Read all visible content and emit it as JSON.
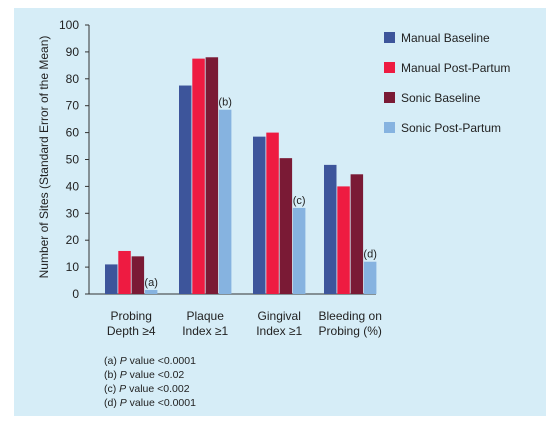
{
  "chart_data": {
    "type": "bar",
    "ylabel": "Number of Sites (Standard Error of the Mean)",
    "xlabel": "",
    "ylim": [
      0,
      100
    ],
    "yticks": [
      0,
      10,
      20,
      30,
      40,
      50,
      60,
      70,
      80,
      90,
      100
    ],
    "categories": [
      [
        "Probing",
        "Depth ≥4"
      ],
      [
        "Plaque",
        "Index ≥1"
      ],
      [
        "Gingival",
        "Index ≥1"
      ],
      [
        "Bleeding on",
        "Probing (%)"
      ]
    ],
    "series": [
      {
        "name": "Manual Baseline",
        "color": "#3d559b",
        "values": [
          11,
          77.5,
          58.5,
          48
        ]
      },
      {
        "name": "Manual Post-Partum",
        "color": "#ee1b41",
        "values": [
          16,
          87.5,
          60,
          40
        ]
      },
      {
        "name": "Sonic Baseline",
        "color": "#7a1a35",
        "values": [
          14,
          88,
          50.5,
          44.5
        ]
      },
      {
        "name": "Sonic Post-Partum",
        "color": "#86b3e0",
        "values": [
          1.5,
          68.5,
          32,
          12
        ]
      }
    ],
    "annotations": [
      {
        "category": 0,
        "text": "(a)"
      },
      {
        "category": 1,
        "text": "(b)"
      },
      {
        "category": 2,
        "text": "(c)"
      },
      {
        "category": 3,
        "text": "(d)"
      }
    ],
    "legend_position": "right",
    "grid": false
  },
  "footnotes": [
    {
      "label": "(a)",
      "italic": "P",
      "rest": " value <0.0001"
    },
    {
      "label": "(b)",
      "italic": "P",
      "rest": " value <0.02"
    },
    {
      "label": "(c)",
      "italic": "P",
      "rest": " value <0.002"
    },
    {
      "label": "(d)",
      "italic": "P",
      "rest": " value <0.0001"
    }
  ]
}
